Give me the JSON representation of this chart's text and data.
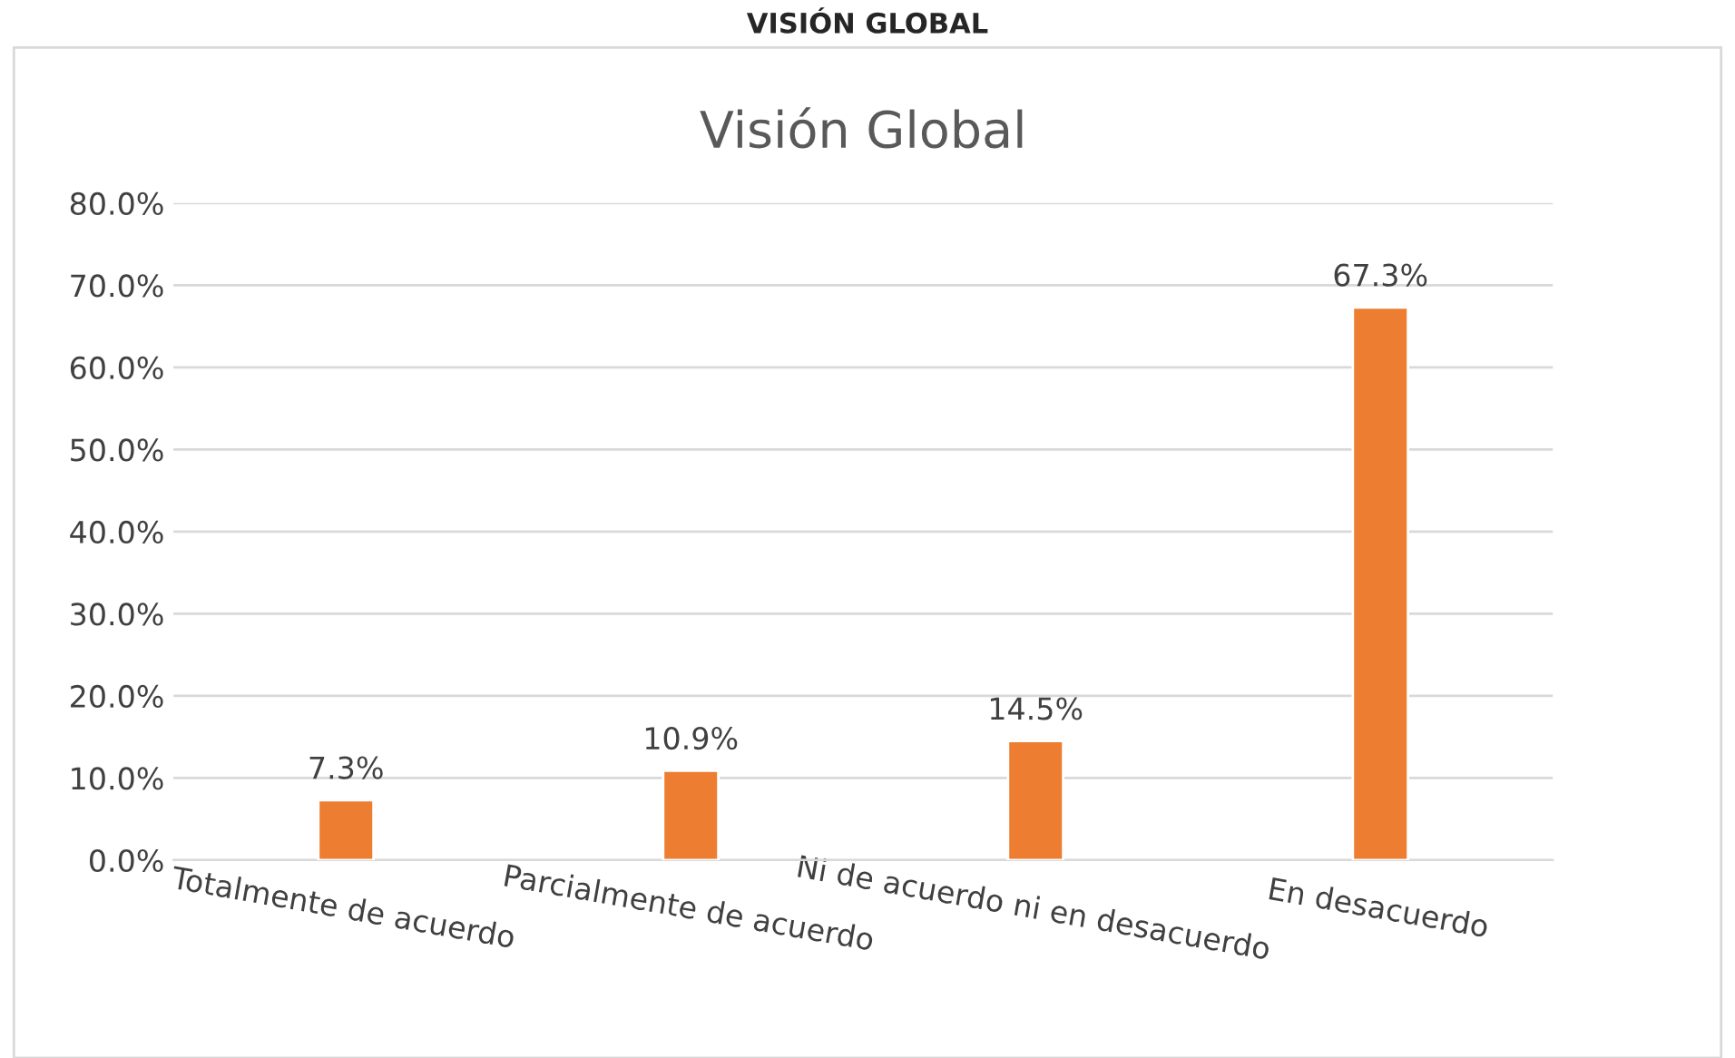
{
  "chart_data": {
    "type": "bar",
    "title": "Visión Global",
    "annotations": [
      "VISIÓN GLOBAL"
    ],
    "categories": [
      "Totalmente de acuerdo",
      "Parcialmente de acuerdo",
      "Ni de acuerdo ni en desacuerdo",
      "En desacuerdo"
    ],
    "values": [
      7.3,
      10.9,
      14.5,
      67.3
    ],
    "color": "#ed7d31",
    "value_labels": [
      "7.3%",
      "10.9%",
      "14.5%",
      "67.3%"
    ],
    "ylim": [
      0,
      80
    ],
    "yticks": [
      {
        "value": 0,
        "label": "0.0%"
      },
      {
        "value": 10,
        "label": "10.0%"
      },
      {
        "value": 20,
        "label": "20.0%"
      },
      {
        "value": 30,
        "label": "30.0%"
      },
      {
        "value": 40,
        "label": "40.0%"
      },
      {
        "value": 50,
        "label": "50.0%"
      },
      {
        "value": 60,
        "label": "60.0%"
      },
      {
        "value": 70,
        "label": "70.0%"
      },
      {
        "value": 80,
        "label": "80.0%"
      }
    ],
    "grid": "y",
    "legend": false
  }
}
